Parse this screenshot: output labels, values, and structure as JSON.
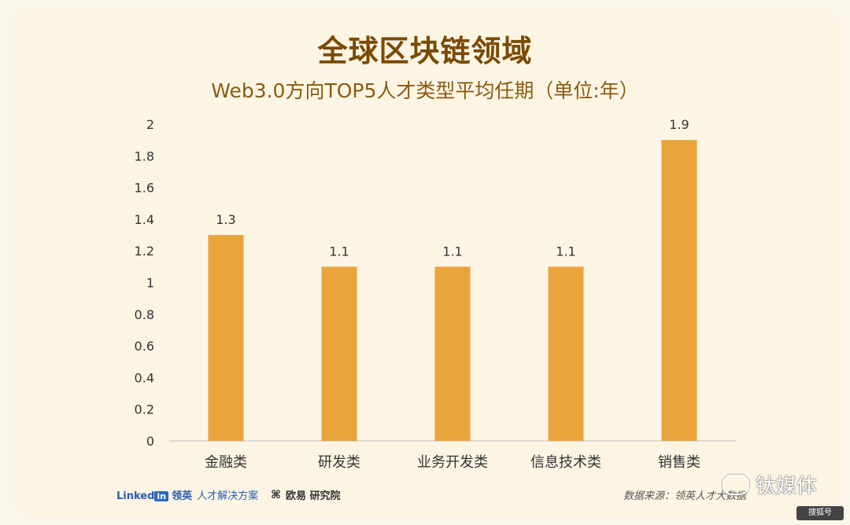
{
  "title": "全球区块链领域",
  "subtitle": "Web3.0方向TOP5人才类型平均任期（单位:年）",
  "chart_data": {
    "type": "bar",
    "categories": [
      "金融类",
      "研发类",
      "业务开发类",
      "信息技术类",
      "销售类"
    ],
    "values": [
      1.3,
      1.1,
      1.1,
      1.1,
      1.9
    ],
    "ylim": [
      0,
      2
    ],
    "yticks": [
      "0",
      "0.2",
      "0.4",
      "0.6",
      "0.8",
      "1",
      "1.2",
      "1.4",
      "1.6",
      "1.8",
      "2"
    ],
    "grid": false,
    "bar_color": "#e9a43c"
  },
  "footer": {
    "linkedin": "Linked",
    "linkedin_in": "in",
    "lingying": "领英",
    "solution": "人才解决方案",
    "research_icon": "x-logo-icon",
    "research": "欧易 研究院",
    "source": "数据来源：领英人才大数据",
    "watermark": "钛媒体",
    "badge": "搜狐号"
  }
}
